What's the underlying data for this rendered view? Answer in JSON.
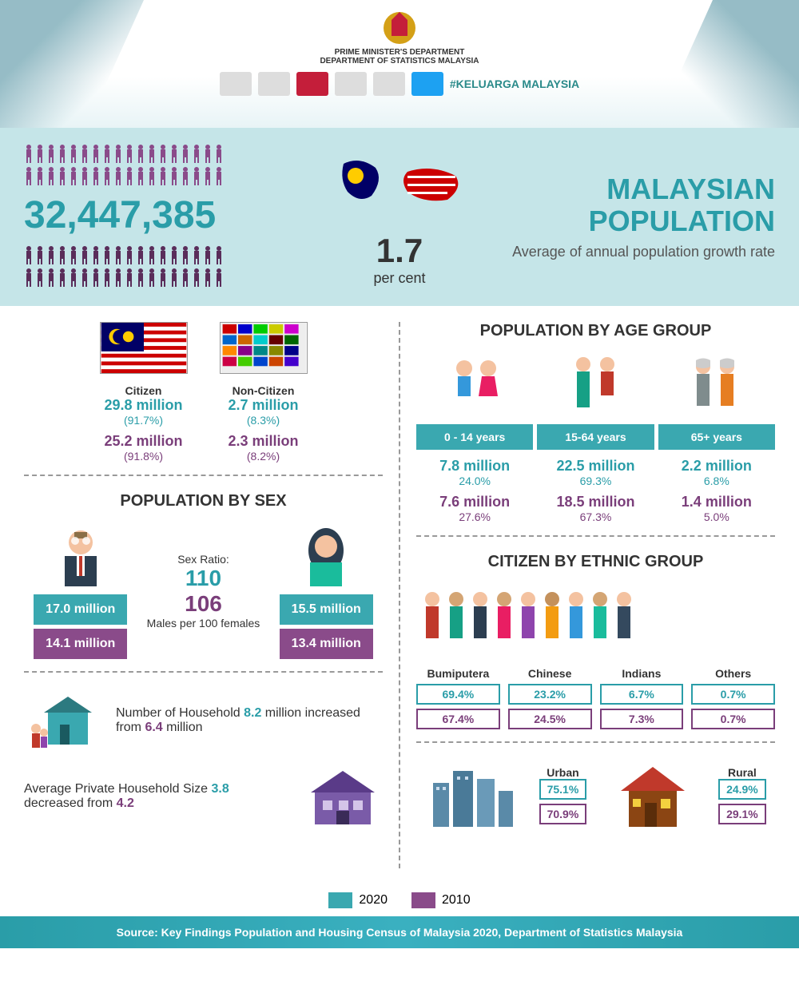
{
  "header": {
    "dept_line1": "PRIME MINISTER'S DEPARTMENT",
    "dept_line2": "DEPARTMENT OF STATISTICS MALAYSIA",
    "hashtag": "#KELUARGA MALAYSIA"
  },
  "hero": {
    "population": "32,447,385",
    "growth_rate": "1.7",
    "growth_unit": "per cent",
    "title_line1": "MALAYSIAN",
    "title_line2": "POPULATION",
    "subtitle": "Average of annual population growth rate",
    "icon_colors": {
      "female": "#8a4b8a",
      "male": "#5a2d5a"
    }
  },
  "citizen": {
    "col1": {
      "label": "Citizen",
      "val_2020": "29.8 million",
      "pct_2020": "(91.7%)",
      "val_2010": "25.2 million",
      "pct_2010": "(91.8%)"
    },
    "col2": {
      "label": "Non-Citizen",
      "val_2020": "2.7 million",
      "pct_2020": "(8.3%)",
      "val_2010": "2.3 million",
      "pct_2010": "(8.2%)"
    }
  },
  "sex": {
    "title": "POPULATION BY SEX",
    "male": {
      "val_2020": "17.0 million",
      "val_2010": "14.1 million"
    },
    "female": {
      "val_2020": "15.5 million",
      "val_2010": "13.4 million"
    },
    "ratio_label": "Sex Ratio:",
    "ratio_2020": "110",
    "ratio_2010": "106",
    "ratio_desc": "Males per 100 females"
  },
  "household": {
    "h1_prefix": "Number of Household ",
    "h1_v1": "8.2",
    "h1_mid": " million increased from ",
    "h1_v2": "6.4",
    "h1_suffix": " million",
    "h2_prefix": "Average Private Household Size ",
    "h2_v1": "3.8",
    "h2_mid": " decreased from ",
    "h2_v2": "4.2"
  },
  "age": {
    "title": "POPULATION BY AGE GROUP",
    "groups": [
      {
        "label": "0 - 14 years",
        "v2020": "7.8 million",
        "p2020": "24.0%",
        "v2010": "7.6 million",
        "p2010": "27.6%"
      },
      {
        "label": "15-64 years",
        "v2020": "22.5 million",
        "p2020": "69.3%",
        "v2010": "18.5 million",
        "p2010": "67.3%"
      },
      {
        "label": "65+ years",
        "v2020": "2.2 million",
        "p2020": "6.8%",
        "v2010": "1.4 million",
        "p2010": "5.0%"
      }
    ]
  },
  "ethnic": {
    "title": "CITIZEN BY ETHNIC GROUP",
    "groups": [
      {
        "label": "Bumiputera",
        "p2020": "69.4%",
        "p2010": "67.4%"
      },
      {
        "label": "Chinese",
        "p2020": "23.2%",
        "p2010": "24.5%"
      },
      {
        "label": "Indians",
        "p2020": "6.7%",
        "p2010": "7.3%"
      },
      {
        "label": "Others",
        "p2020": "0.7%",
        "p2010": "0.7%"
      }
    ]
  },
  "urbanrural": {
    "urban": {
      "label": "Urban",
      "p2020": "75.1%",
      "p2010": "70.9%"
    },
    "rural": {
      "label": "Rural",
      "p2020": "24.9%",
      "p2010": "29.1%"
    }
  },
  "legend": {
    "y2020": "2020",
    "y2010": "2010"
  },
  "footer": {
    "source": "Source: Key Findings Population and Housing Census of Malaysia 2020, Department of Statistics Malaysia"
  },
  "colors": {
    "teal": "#2a9da8",
    "purple": "#7a3e7a",
    "teal_box": "#3aa8b0",
    "purple_box": "#8a4b8a"
  }
}
